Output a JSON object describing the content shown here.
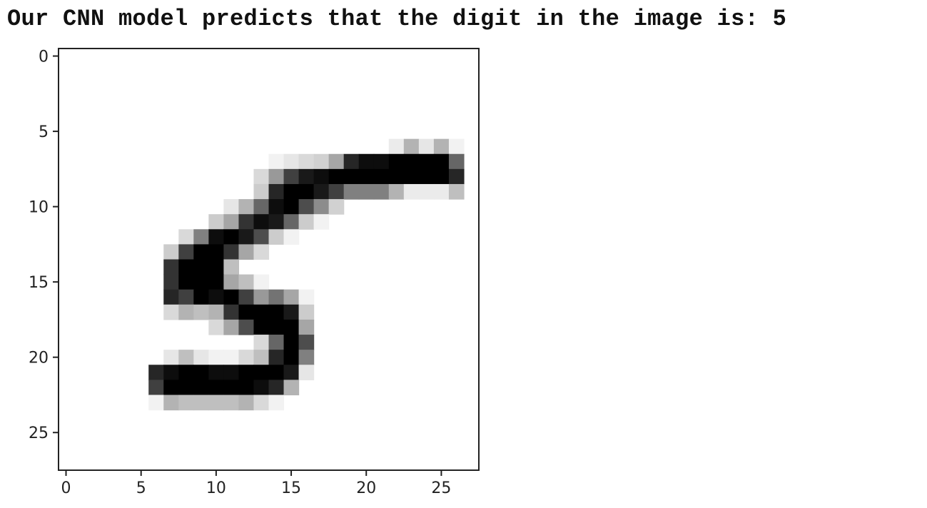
{
  "output_text": "Our CNN model predicts that the digit in the image is: 5",
  "chart_data": {
    "type": "heatmap",
    "colormap": "gray_r",
    "xlim": [
      -0.5,
      27.5
    ],
    "ylim": [
      27.5,
      -0.5
    ],
    "x_ticks": [
      0,
      5,
      10,
      15,
      20,
      25
    ],
    "y_ticks": [
      0,
      5,
      10,
      15,
      20,
      25
    ],
    "grid": false,
    "pixel_values": [
      [
        0,
        0,
        0,
        0,
        0,
        0,
        0,
        0,
        0,
        0,
        0,
        0,
        0,
        0,
        0,
        0,
        0,
        0,
        0,
        0,
        0,
        0,
        0,
        0,
        0,
        0,
        0,
        0
      ],
      [
        0,
        0,
        0,
        0,
        0,
        0,
        0,
        0,
        0,
        0,
        0,
        0,
        0,
        0,
        0,
        0,
        0,
        0,
        0,
        0,
        0,
        0,
        0,
        0,
        0,
        0,
        0,
        0
      ],
      [
        0,
        0,
        0,
        0,
        0,
        0,
        0,
        0,
        0,
        0,
        0,
        0,
        0,
        0,
        0,
        0,
        0,
        0,
        0,
        0,
        0,
        0,
        0,
        0,
        0,
        0,
        0,
        0
      ],
      [
        0,
        0,
        0,
        0,
        0,
        0,
        0,
        0,
        0,
        0,
        0,
        0,
        0,
        0,
        0,
        0,
        0,
        0,
        0,
        0,
        0,
        0,
        0,
        0,
        0,
        0,
        0,
        0
      ],
      [
        0,
        0,
        0,
        0,
        0,
        0,
        0,
        0,
        0,
        0,
        0,
        0,
        0,
        0,
        0,
        0,
        0,
        0,
        0,
        0,
        0,
        0,
        0,
        0,
        0,
        0,
        0,
        0
      ],
      [
        0,
        0,
        0,
        0,
        0,
        0,
        0,
        0,
        0,
        0,
        0,
        0,
        0,
        0,
        0,
        0,
        0,
        0,
        0,
        0,
        0,
        0,
        0,
        0,
        0,
        0,
        0,
        0
      ],
      [
        0,
        0,
        0,
        0,
        0,
        0,
        0,
        0,
        0,
        0,
        0,
        0,
        0,
        0,
        0,
        0,
        0,
        0,
        0,
        0,
        0,
        0,
        0.08,
        0.3,
        0.1,
        0.3,
        0.05,
        0
      ],
      [
        0,
        0,
        0,
        0,
        0,
        0,
        0,
        0,
        0,
        0,
        0,
        0,
        0,
        0,
        0.05,
        0.1,
        0.15,
        0.18,
        0.35,
        0.85,
        0.95,
        0.95,
        1,
        1,
        1,
        1,
        0.6,
        0
      ],
      [
        0,
        0,
        0,
        0,
        0,
        0,
        0,
        0,
        0,
        0,
        0,
        0,
        0,
        0.15,
        0.4,
        0.75,
        0.9,
        0.95,
        1,
        1,
        1,
        1,
        1,
        1,
        1,
        1,
        0.85,
        0
      ],
      [
        0,
        0,
        0,
        0,
        0,
        0,
        0,
        0,
        0,
        0,
        0,
        0,
        0,
        0.2,
        0.85,
        1,
        1,
        0.9,
        0.75,
        0.5,
        0.5,
        0.5,
        0.3,
        0.08,
        0.08,
        0.08,
        0.25,
        0
      ],
      [
        0,
        0,
        0,
        0,
        0,
        0,
        0,
        0,
        0,
        0,
        0,
        0.1,
        0.3,
        0.6,
        0.95,
        1,
        0.7,
        0.45,
        0.18,
        0,
        0,
        0,
        0,
        0,
        0,
        0,
        0,
        0
      ],
      [
        0,
        0,
        0,
        0,
        0,
        0,
        0,
        0,
        0,
        0,
        0.2,
        0.35,
        0.8,
        0.95,
        0.9,
        0.6,
        0.2,
        0.05,
        0,
        0,
        0,
        0,
        0,
        0,
        0,
        0,
        0,
        0
      ],
      [
        0,
        0,
        0,
        0,
        0,
        0,
        0,
        0,
        0.15,
        0.5,
        0.95,
        1,
        0.9,
        0.7,
        0.2,
        0.05,
        0,
        0,
        0,
        0,
        0,
        0,
        0,
        0,
        0,
        0,
        0,
        0
      ],
      [
        0,
        0,
        0,
        0,
        0,
        0,
        0,
        0.2,
        0.75,
        1,
        1,
        0.8,
        0.35,
        0.15,
        0,
        0,
        0,
        0,
        0,
        0,
        0,
        0,
        0,
        0,
        0,
        0,
        0,
        0
      ],
      [
        0,
        0,
        0,
        0,
        0,
        0,
        0,
        0.8,
        1,
        1,
        1,
        0.25,
        0,
        0,
        0,
        0,
        0,
        0,
        0,
        0,
        0,
        0,
        0,
        0,
        0,
        0,
        0,
        0
      ],
      [
        0,
        0,
        0,
        0,
        0,
        0,
        0,
        0.8,
        1,
        1,
        1,
        0.35,
        0.25,
        0.05,
        0,
        0,
        0,
        0,
        0,
        0,
        0,
        0,
        0,
        0,
        0,
        0,
        0,
        0
      ],
      [
        0,
        0,
        0,
        0,
        0,
        0,
        0,
        0.85,
        0.75,
        1,
        0.95,
        1,
        0.75,
        0.4,
        0.55,
        0.35,
        0.05,
        0,
        0,
        0,
        0,
        0,
        0,
        0,
        0,
        0,
        0,
        0
      ],
      [
        0,
        0,
        0,
        0,
        0,
        0,
        0,
        0.15,
        0.3,
        0.25,
        0.3,
        0.8,
        1,
        1,
        1,
        0.9,
        0.2,
        0,
        0,
        0,
        0,
        0,
        0,
        0,
        0,
        0,
        0,
        0
      ],
      [
        0,
        0,
        0,
        0,
        0,
        0,
        0,
        0,
        0,
        0,
        0.15,
        0.35,
        0.7,
        1,
        1,
        1,
        0.35,
        0,
        0,
        0,
        0,
        0,
        0,
        0,
        0,
        0,
        0,
        0
      ],
      [
        0,
        0,
        0,
        0,
        0,
        0,
        0,
        0,
        0,
        0,
        0,
        0,
        0,
        0.15,
        0.6,
        1,
        0.7,
        0,
        0,
        0,
        0,
        0,
        0,
        0,
        0,
        0,
        0,
        0
      ],
      [
        0,
        0,
        0,
        0,
        0,
        0,
        0,
        0.1,
        0.25,
        0.1,
        0.05,
        0.05,
        0.15,
        0.25,
        0.85,
        1,
        0.5,
        0,
        0,
        0,
        0,
        0,
        0,
        0,
        0,
        0,
        0,
        0
      ],
      [
        0,
        0,
        0,
        0,
        0,
        0,
        0.85,
        0.95,
        1,
        1,
        0.95,
        0.95,
        1,
        1,
        1,
        0.9,
        0.1,
        0,
        0,
        0,
        0,
        0,
        0,
        0,
        0,
        0,
        0,
        0
      ],
      [
        0,
        0,
        0,
        0,
        0,
        0,
        0.75,
        1,
        1,
        1,
        1,
        1,
        1,
        0.95,
        0.85,
        0.3,
        0,
        0,
        0,
        0,
        0,
        0,
        0,
        0,
        0,
        0,
        0,
        0
      ],
      [
        0,
        0,
        0,
        0,
        0,
        0,
        0.05,
        0.3,
        0.25,
        0.25,
        0.25,
        0.25,
        0.3,
        0.15,
        0.05,
        0,
        0,
        0,
        0,
        0,
        0,
        0,
        0,
        0,
        0,
        0,
        0,
        0
      ],
      [
        0,
        0,
        0,
        0,
        0,
        0,
        0,
        0,
        0,
        0,
        0,
        0,
        0,
        0,
        0,
        0,
        0,
        0,
        0,
        0,
        0,
        0,
        0,
        0,
        0,
        0,
        0,
        0
      ],
      [
        0,
        0,
        0,
        0,
        0,
        0,
        0,
        0,
        0,
        0,
        0,
        0,
        0,
        0,
        0,
        0,
        0,
        0,
        0,
        0,
        0,
        0,
        0,
        0,
        0,
        0,
        0,
        0
      ],
      [
        0,
        0,
        0,
        0,
        0,
        0,
        0,
        0,
        0,
        0,
        0,
        0,
        0,
        0,
        0,
        0,
        0,
        0,
        0,
        0,
        0,
        0,
        0,
        0,
        0,
        0,
        0,
        0
      ],
      [
        0,
        0,
        0,
        0,
        0,
        0,
        0,
        0,
        0,
        0,
        0,
        0,
        0,
        0,
        0,
        0,
        0,
        0,
        0,
        0,
        0,
        0,
        0,
        0,
        0,
        0,
        0,
        0
      ]
    ]
  }
}
